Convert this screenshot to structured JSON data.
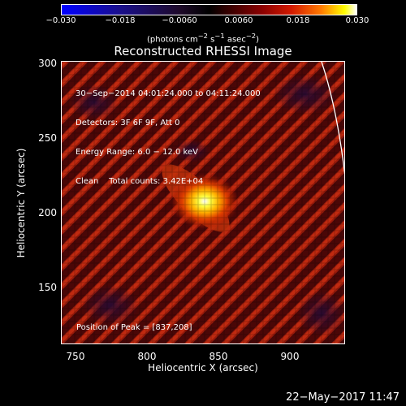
{
  "colorbar": {
    "ticks": [
      "−0.030",
      "−0.018",
      "−0.0060",
      "0.0060",
      "0.018",
      "0.030"
    ],
    "unit_prefix": "(photons cm",
    "unit_sup1": "−2",
    "unit_mid": " s",
    "unit_sup2": "−1",
    "unit_mid2": " asec",
    "unit_sup3": "−2",
    "unit_suffix": ")"
  },
  "title": "Reconstructed RHESSI Image",
  "info": {
    "line1": "30−Sep−2014 04:01:24.000 to 04:11:24.000",
    "line2": "Detectors: 3F 6F 9F, Att 0",
    "line3": "Energy Range: 6.0 − 12.0 keV",
    "line4": "Clean    Total counts: 3.42E+04",
    "peak": "Position of Peak = [837,208]"
  },
  "axes": {
    "xlabel": "Heliocentric X (arcsec)",
    "ylabel": "Heliocentric Y (arcsec)",
    "xticks": [
      "750",
      "800",
      "850",
      "900"
    ],
    "yticks": [
      "300",
      "250",
      "200",
      "150"
    ]
  },
  "timestamp": "22−May−2017 11:47"
}
